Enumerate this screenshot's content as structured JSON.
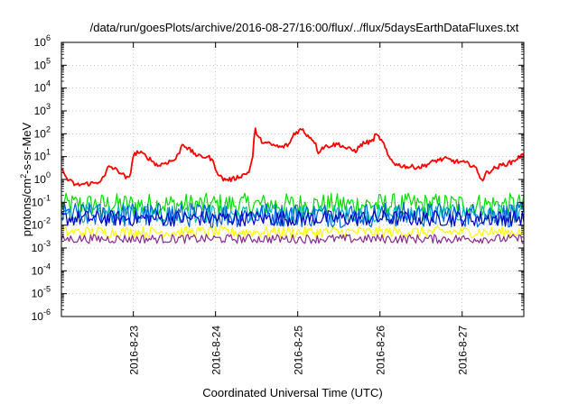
{
  "chart_data": {
    "type": "line",
    "title": "/data/run/goesPlots/archive/2016-08-27/16:00/flux/../flux/5daysEarthDataFluxes.txt",
    "xlabel": "Coordinated Universal Time (UTC)",
    "ylabel": {
      "prefix": "protons/cm",
      "sup": "2",
      "suffix": "-s-sr-MeV"
    },
    "xscale": "time (days)",
    "yscale": "log",
    "xlim": [
      "2016-08-22 03:00",
      "2016-08-27 18:00"
    ],
    "ylim": [
      1e-06,
      1000000.0
    ],
    "grid": true,
    "legend": "none",
    "xticks": [
      {
        "day": 1,
        "label": "2016-8-23"
      },
      {
        "day": 2,
        "label": "2016-8-24"
      },
      {
        "day": 3,
        "label": "2016-8-25"
      },
      {
        "day": 4,
        "label": "2016-8-26"
      },
      {
        "day": 5,
        "label": "2016-8-27"
      }
    ],
    "yticks": [
      {
        "exp": 6,
        "base": "10",
        "sup": "6"
      },
      {
        "exp": 5,
        "base": "10",
        "sup": "5"
      },
      {
        "exp": 4,
        "base": "10",
        "sup": "4"
      },
      {
        "exp": 3,
        "base": "10",
        "sup": "3"
      },
      {
        "exp": 2,
        "base": "10",
        "sup": "2"
      },
      {
        "exp": 1,
        "base": "10",
        "sup": "1"
      },
      {
        "exp": 0,
        "base": "10",
        "sup": "0"
      },
      {
        "exp": -1,
        "base": "10",
        "sup": "-1"
      },
      {
        "exp": -2,
        "base": "10",
        "sup": "-2"
      },
      {
        "exp": -3,
        "base": "10",
        "sup": "-3"
      },
      {
        "exp": -4,
        "base": "10",
        "sup": "-4"
      },
      {
        "exp": -5,
        "base": "10",
        "sup": "-5"
      },
      {
        "exp": -6,
        "base": "10",
        "sup": "-6"
      }
    ],
    "x_start_day": 0.125,
    "x_end_day": 5.75,
    "series": [
      {
        "color": "#00e000",
        "noise_decades": 0.5,
        "log10_values": [
          [
            0.125,
            -1.1
          ],
          [
            1.0,
            -1.1
          ],
          [
            2.0,
            -1.1
          ],
          [
            3.0,
            -1.1
          ],
          [
            4.0,
            -1.1
          ],
          [
            5.0,
            -1.1
          ],
          [
            5.75,
            -1.1
          ]
        ]
      },
      {
        "color": "#00b8b8",
        "noise_decades": 0.4,
        "log10_values": [
          [
            0.125,
            -1.5
          ],
          [
            5.75,
            -1.5
          ]
        ]
      },
      {
        "color": "#0060e0",
        "noise_decades": 0.55,
        "log10_values": [
          [
            0.125,
            -1.55
          ],
          [
            5.75,
            -1.55
          ]
        ]
      },
      {
        "color": "#0000c0",
        "noise_decades": 0.35,
        "log10_values": [
          [
            0.125,
            -1.7
          ],
          [
            5.75,
            -1.7
          ]
        ]
      },
      {
        "color": "#ffff00",
        "noise_decades": 0.25,
        "log10_values": [
          [
            0.125,
            -2.3
          ],
          [
            5.75,
            -2.3
          ]
        ]
      },
      {
        "color": "#8b2b8b",
        "noise_decades": 0.2,
        "log10_values": [
          [
            0.125,
            -2.6
          ],
          [
            5.75,
            -2.6
          ]
        ]
      },
      {
        "color": "#ff0000",
        "noise_decades": 0.1,
        "log10_values": [
          [
            0.125,
            0.45
          ],
          [
            0.2,
            0.0
          ],
          [
            0.3,
            -0.25
          ],
          [
            0.4,
            -0.2
          ],
          [
            0.55,
            -0.15
          ],
          [
            0.65,
            0.1
          ],
          [
            0.7,
            0.6
          ],
          [
            0.75,
            0.5
          ],
          [
            0.85,
            0.3
          ],
          [
            0.9,
            0.1
          ],
          [
            0.95,
            0.0
          ],
          [
            1.0,
            1.05
          ],
          [
            1.05,
            1.2
          ],
          [
            1.12,
            1.1
          ],
          [
            1.2,
            0.9
          ],
          [
            1.3,
            0.6
          ],
          [
            1.4,
            0.75
          ],
          [
            1.5,
            0.85
          ],
          [
            1.55,
            1.1
          ],
          [
            1.6,
            1.6
          ],
          [
            1.65,
            1.4
          ],
          [
            1.7,
            1.25
          ],
          [
            1.8,
            1.0
          ],
          [
            1.9,
            1.0
          ],
          [
            1.95,
            0.9
          ],
          [
            2.0,
            0.5
          ],
          [
            2.05,
            0.15
          ],
          [
            2.1,
            0.0
          ],
          [
            2.2,
            0.0
          ],
          [
            2.3,
            0.15
          ],
          [
            2.4,
            0.3
          ],
          [
            2.45,
            0.9
          ],
          [
            2.48,
            2.25
          ],
          [
            2.52,
            1.8
          ],
          [
            2.6,
            1.6
          ],
          [
            2.7,
            1.5
          ],
          [
            2.8,
            1.4
          ],
          [
            2.9,
            1.55
          ],
          [
            2.95,
            2.0
          ],
          [
            3.0,
            2.1
          ],
          [
            3.05,
            2.2
          ],
          [
            3.1,
            2.0
          ],
          [
            3.2,
            1.7
          ],
          [
            3.25,
            1.2
          ],
          [
            3.3,
            1.4
          ],
          [
            3.4,
            1.5
          ],
          [
            3.5,
            1.55
          ],
          [
            3.6,
            1.35
          ],
          [
            3.7,
            1.25
          ],
          [
            3.8,
            1.6
          ],
          [
            3.9,
            1.65
          ],
          [
            3.95,
            1.95
          ],
          [
            4.0,
            1.8
          ],
          [
            4.05,
            1.5
          ],
          [
            4.1,
            1.0
          ],
          [
            4.2,
            0.65
          ],
          [
            4.35,
            0.55
          ],
          [
            4.5,
            0.55
          ],
          [
            4.6,
            0.7
          ],
          [
            4.7,
            0.85
          ],
          [
            4.8,
            0.9
          ],
          [
            4.9,
            0.8
          ],
          [
            5.0,
            0.75
          ],
          [
            5.1,
            0.65
          ],
          [
            5.15,
            0.6
          ],
          [
            5.2,
            0.2
          ],
          [
            5.25,
            0.0
          ],
          [
            5.3,
            0.3
          ],
          [
            5.4,
            0.5
          ],
          [
            5.5,
            0.65
          ],
          [
            5.6,
            0.75
          ],
          [
            5.7,
            1.0
          ],
          [
            5.75,
            1.05
          ]
        ]
      }
    ]
  }
}
